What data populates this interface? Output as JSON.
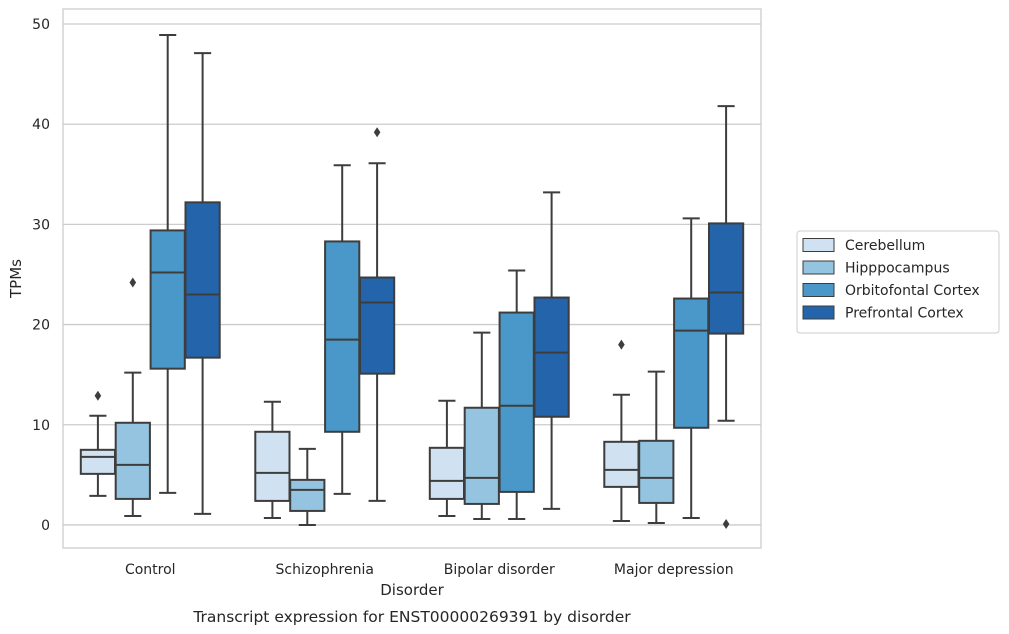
{
  "chart_data": {
    "type": "box",
    "xlabel": "Disorder",
    "ylabel": "TPMs",
    "caption": "Transcript expression for ENST00000269391 by disorder",
    "ylim": [
      -2.3,
      51.5
    ],
    "yticks": [
      0,
      10,
      20,
      30,
      40,
      50
    ],
    "grid": "horizontal",
    "legend_position": "right",
    "categories": [
      "Control",
      "Schizophrenia",
      "Bipolar disorder",
      "Major depression"
    ],
    "series": [
      {
        "name": "Cerebellum",
        "color": "#d0e1f2",
        "boxes": [
          {
            "whisker_low": 2.9,
            "q1": 5.1,
            "median": 6.8,
            "q3": 7.5,
            "whisker_high": 10.9,
            "outliers": [
              12.9
            ]
          },
          {
            "whisker_low": 0.7,
            "q1": 2.4,
            "median": 5.2,
            "q3": 9.3,
            "whisker_high": 12.3,
            "outliers": []
          },
          {
            "whisker_low": 0.9,
            "q1": 2.6,
            "median": 4.4,
            "q3": 7.7,
            "whisker_high": 12.4,
            "outliers": []
          },
          {
            "whisker_low": 0.4,
            "q1": 3.8,
            "median": 5.5,
            "q3": 8.3,
            "whisker_high": 13.0,
            "outliers": [
              18.0
            ]
          }
        ]
      },
      {
        "name": "Hipppocampus",
        "color": "#94c4df",
        "boxes": [
          {
            "whisker_low": 0.9,
            "q1": 2.6,
            "median": 6.0,
            "q3": 10.2,
            "whisker_high": 15.2,
            "outliers": [
              24.2
            ]
          },
          {
            "whisker_low": 0.0,
            "q1": 1.4,
            "median": 3.5,
            "q3": 4.5,
            "whisker_high": 7.6,
            "outliers": []
          },
          {
            "whisker_low": 0.6,
            "q1": 2.1,
            "median": 4.7,
            "q3": 11.7,
            "whisker_high": 19.2,
            "outliers": []
          },
          {
            "whisker_low": 0.2,
            "q1": 2.2,
            "median": 4.7,
            "q3": 8.4,
            "whisker_high": 15.3,
            "outliers": []
          }
        ]
      },
      {
        "name": "Orbitofontal Cortex",
        "color": "#4a98c9",
        "boxes": [
          {
            "whisker_low": 3.2,
            "q1": 15.6,
            "median": 25.2,
            "q3": 29.4,
            "whisker_high": 48.9,
            "outliers": []
          },
          {
            "whisker_low": 3.1,
            "q1": 9.3,
            "median": 18.5,
            "q3": 28.3,
            "whisker_high": 35.9,
            "outliers": []
          },
          {
            "whisker_low": 0.6,
            "q1": 3.3,
            "median": 11.9,
            "q3": 21.2,
            "whisker_high": 25.4,
            "outliers": []
          },
          {
            "whisker_low": 0.7,
            "q1": 9.7,
            "median": 19.4,
            "q3": 22.6,
            "whisker_high": 30.6,
            "outliers": []
          }
        ]
      },
      {
        "name": "Prefrontal Cortex",
        "color": "#2464ab",
        "boxes": [
          {
            "whisker_low": 1.1,
            "q1": 16.7,
            "median": 23.0,
            "q3": 32.2,
            "whisker_high": 47.1,
            "outliers": []
          },
          {
            "whisker_low": 2.4,
            "q1": 15.1,
            "median": 22.2,
            "q3": 24.7,
            "whisker_high": 36.1,
            "outliers": [
              39.2
            ]
          },
          {
            "whisker_low": 1.6,
            "q1": 10.8,
            "median": 17.2,
            "q3": 22.7,
            "whisker_high": 33.2,
            "outliers": []
          },
          {
            "whisker_low": 10.4,
            "q1": 19.1,
            "median": 23.2,
            "q3": 30.1,
            "whisker_high": 41.8,
            "outliers": [
              0.1
            ]
          }
        ]
      }
    ]
  }
}
